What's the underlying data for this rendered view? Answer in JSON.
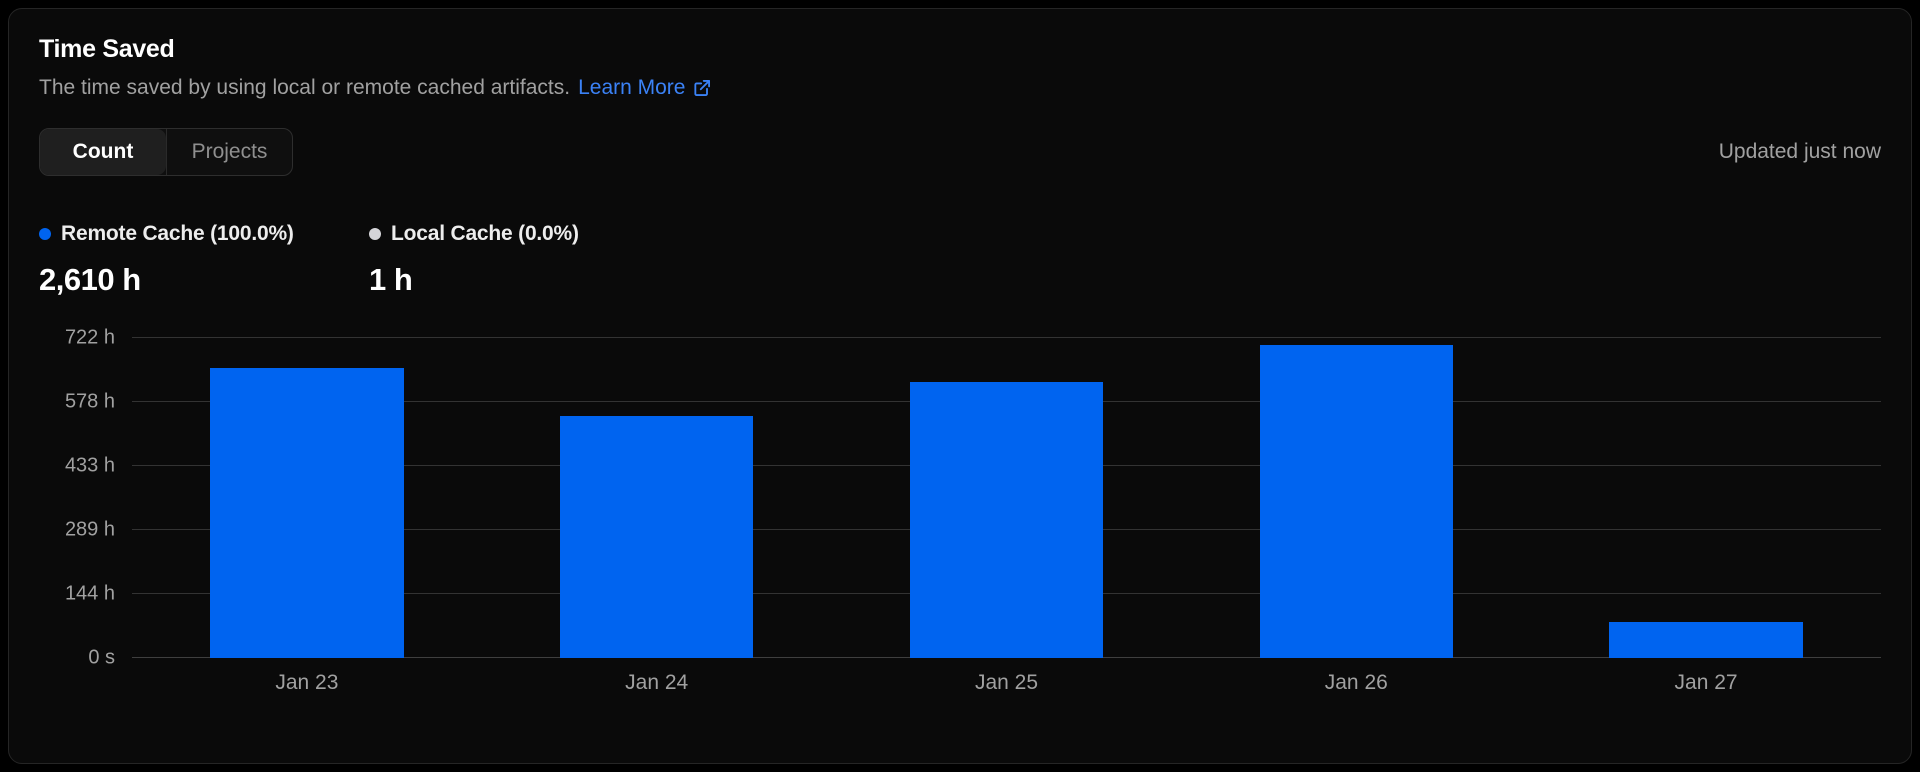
{
  "card": {
    "title": "Time Saved",
    "subtitle": "The time saved by using local or remote cached artifacts.",
    "learn_more_label": "Learn More",
    "updated_text": "Updated just now"
  },
  "tabs": [
    {
      "label": "Count",
      "active": true
    },
    {
      "label": "Projects",
      "active": false
    }
  ],
  "legend": [
    {
      "label": "Remote Cache (100.0%)",
      "value": "2,610 h",
      "dot_color": "#0064f0"
    },
    {
      "label": "Local Cache (0.0%)",
      "value": "1 h",
      "dot_color": "#d4d4d8"
    }
  ],
  "colors": {
    "bar": "#0064f0",
    "link": "#3b82f6",
    "gridline": "#333333",
    "muted_text": "#a1a1a1",
    "card_background": "#0a0a0a"
  },
  "chart_data": {
    "type": "bar",
    "title": "Time Saved",
    "categories": [
      "Jan 23",
      "Jan 24",
      "Jan 25",
      "Jan 26",
      "Jan 27"
    ],
    "series": [
      {
        "name": "Remote Cache",
        "values": [
          655,
          545,
          622,
          707,
          81
        ],
        "color": "#0064f0"
      },
      {
        "name": "Local Cache",
        "values": [
          0,
          0,
          0,
          0,
          0
        ],
        "color": "#d4d4d8"
      }
    ],
    "unit": "h",
    "ylim": [
      0,
      722
    ],
    "y_ticks": [
      {
        "label": "0 s",
        "value": 0
      },
      {
        "label": "144 h",
        "value": 144
      },
      {
        "label": "289 h",
        "value": 289
      },
      {
        "label": "433 h",
        "value": 433
      },
      {
        "label": "578 h",
        "value": 578
      },
      {
        "label": "722 h",
        "value": 722
      }
    ],
    "grid": true,
    "legend_position": "top-left"
  }
}
